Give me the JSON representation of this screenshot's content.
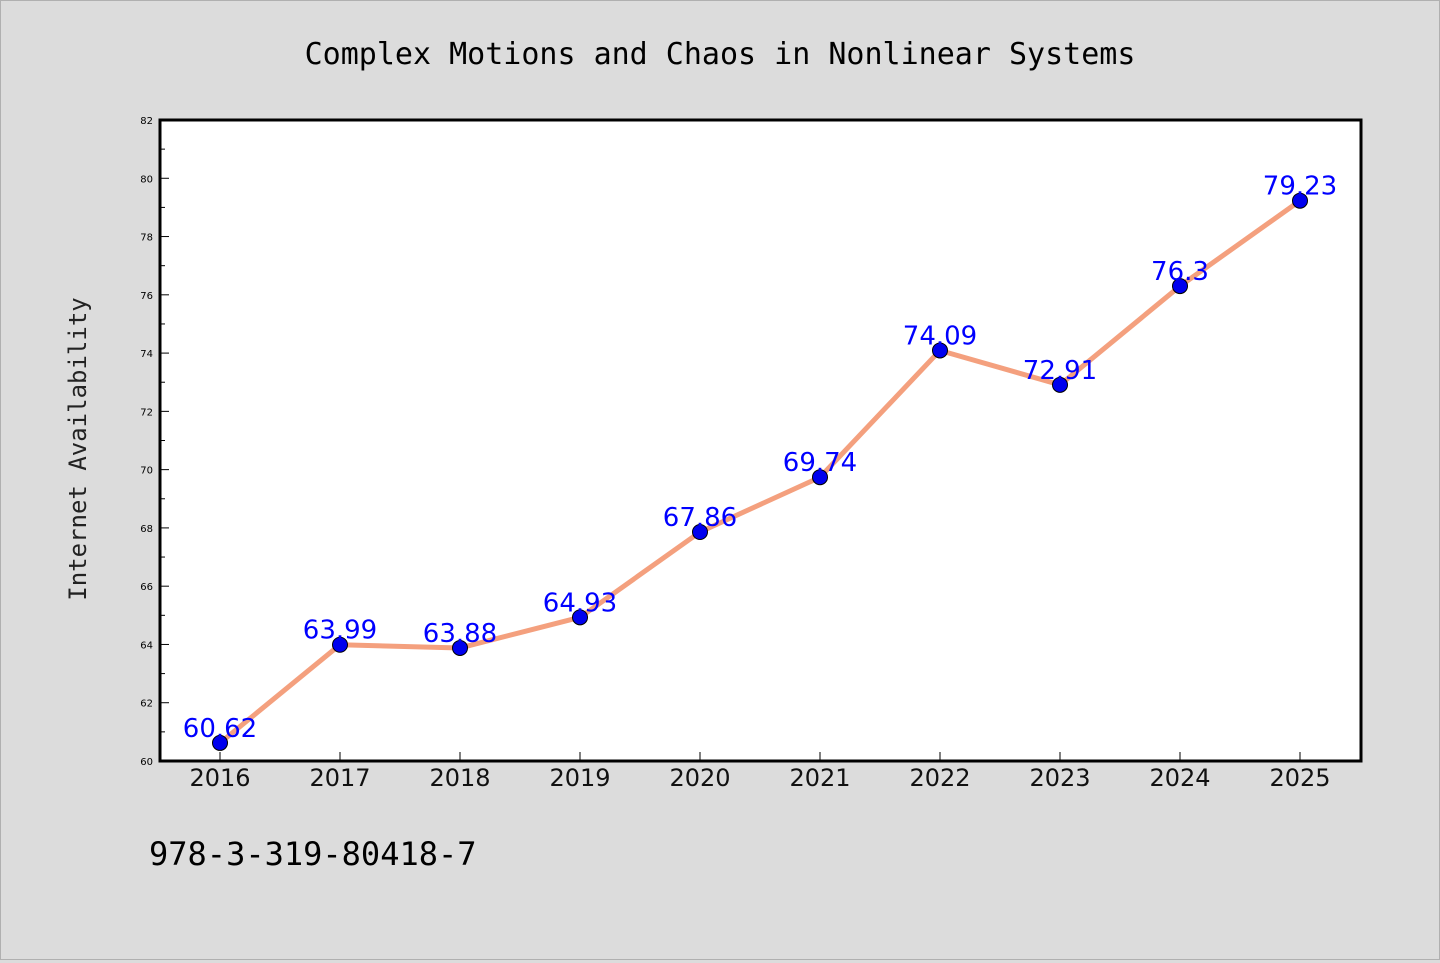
{
  "chart_data": {
    "type": "line",
    "title": "Complex Motions and Chaos in Nonlinear Systems",
    "xlabel": "",
    "ylabel": "Internet Availability",
    "categories": [
      "2016",
      "2017",
      "2018",
      "2019",
      "2020",
      "2021",
      "2022",
      "2023",
      "2024",
      "2025"
    ],
    "series": [
      {
        "values": [
          60.62,
          63.99,
          63.88,
          64.93,
          67.86,
          69.74,
          74.09,
          72.91,
          76.3,
          79.23
        ],
        "data_labels": [
          "60.62",
          "63.99",
          "63.88",
          "64.93",
          "67.86",
          "69.74",
          "74.09",
          "72.91",
          "76.3",
          "79.23"
        ],
        "line_color": "#f4a07e",
        "marker_color": "#0000ee"
      }
    ],
    "ylim": [
      60,
      82
    ],
    "yticks": [
      60,
      62,
      64,
      66,
      68,
      70,
      72,
      74,
      76,
      78,
      80,
      82
    ],
    "grid": false,
    "legend": "none"
  },
  "footer": {
    "isbn": "978-3-319-80418-7"
  }
}
